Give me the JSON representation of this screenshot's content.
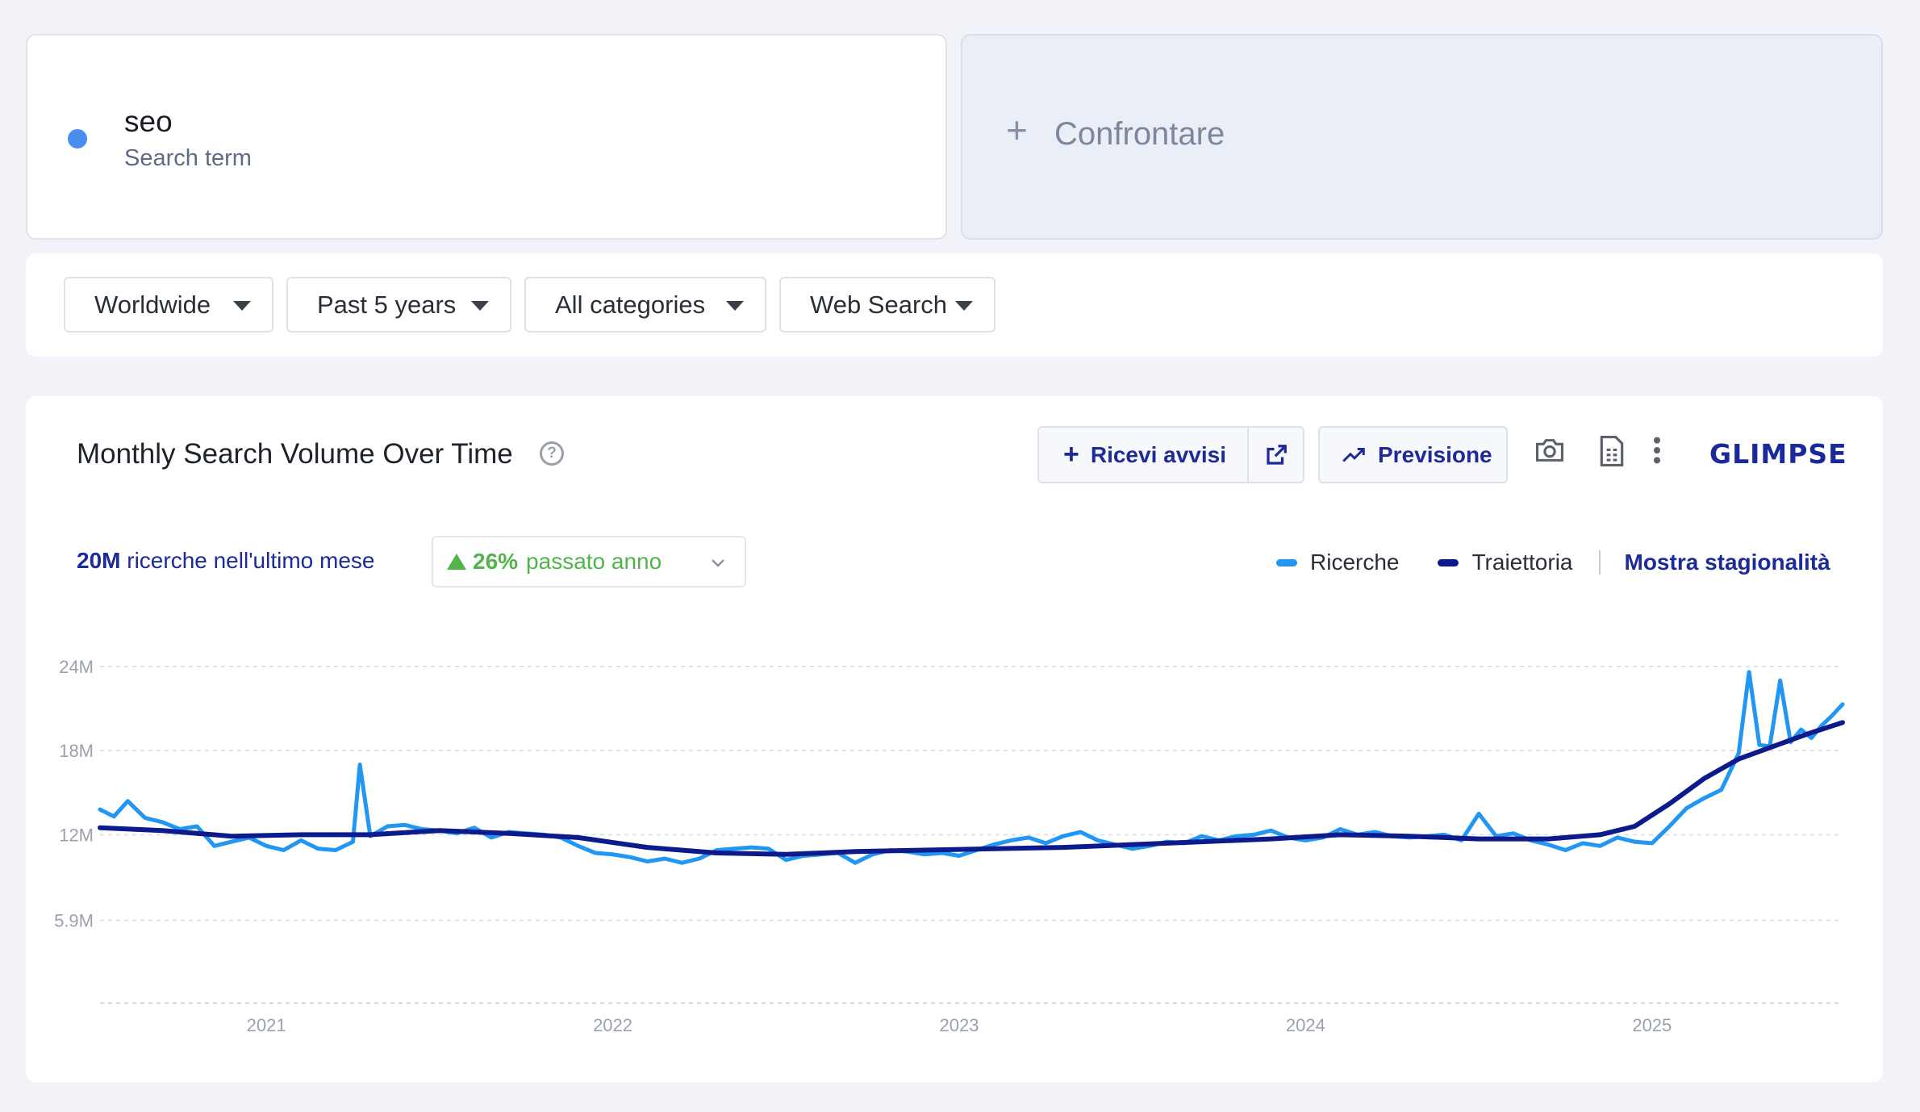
{
  "search_term": {
    "name": "seo",
    "type_label": "Search term",
    "color": "#4a8df0"
  },
  "compare": {
    "label": "Confrontare"
  },
  "filters": [
    {
      "label": "Worldwide"
    },
    {
      "label": "Past 5 years"
    },
    {
      "label": "All categories"
    },
    {
      "label": "Web Search"
    }
  ],
  "chart_card": {
    "title": "Monthly Search Volume Over Time",
    "alerts_label": "Ricevi avvisi",
    "forecast_label": "Previsione",
    "brand": "GLIMPSE",
    "volume_value": "20M",
    "volume_text": " ricerche nell'ultimo mese",
    "change_value": "26%",
    "change_text": "passato anno",
    "legend": {
      "searches": "Ricerche",
      "trajectory": "Traiettoria",
      "seasonality_link": "Mostra stagionalità"
    },
    "colors": {
      "searches": "#2196f3",
      "trajectory": "#0d1a8c",
      "accent": "#1d2a9a",
      "positive": "#53b34b"
    }
  },
  "chart_data": {
    "type": "line",
    "title": "Monthly Search Volume Over Time",
    "xlabel": "",
    "ylabel": "",
    "x_ticks": [
      "2021",
      "2022",
      "2023",
      "2024",
      "2025"
    ],
    "y_ticks": [
      "5.9M",
      "12M",
      "18M",
      "24M"
    ],
    "y_tick_values": [
      5.9,
      12,
      18,
      24
    ],
    "ylim": [
      0,
      25
    ],
    "xlim": [
      2020.52,
      2025.55
    ],
    "grid": true,
    "legend_position": "top-right",
    "series": [
      {
        "name": "Ricerche",
        "x": [
          2020.52,
          2020.56,
          2020.6,
          2020.65,
          2020.7,
          2020.75,
          2020.8,
          2020.85,
          2020.9,
          2020.95,
          2021.0,
          2021.05,
          2021.1,
          2021.15,
          2021.2,
          2021.25,
          2021.27,
          2021.3,
          2021.35,
          2021.4,
          2021.45,
          2021.5,
          2021.55,
          2021.6,
          2021.65,
          2021.7,
          2021.75,
          2021.8,
          2021.85,
          2021.9,
          2021.95,
          2022.0,
          2022.05,
          2022.1,
          2022.15,
          2022.2,
          2022.25,
          2022.3,
          2022.35,
          2022.4,
          2022.45,
          2022.5,
          2022.55,
          2022.6,
          2022.65,
          2022.7,
          2022.75,
          2022.8,
          2022.85,
          2022.9,
          2022.95,
          2023.0,
          2023.05,
          2023.1,
          2023.15,
          2023.2,
          2023.25,
          2023.3,
          2023.35,
          2023.4,
          2023.45,
          2023.5,
          2023.55,
          2023.6,
          2023.65,
          2023.7,
          2023.75,
          2023.8,
          2023.85,
          2023.9,
          2023.95,
          2024.0,
          2024.05,
          2024.1,
          2024.15,
          2024.2,
          2024.25,
          2024.3,
          2024.35,
          2024.4,
          2024.45,
          2024.5,
          2024.55,
          2024.6,
          2024.65,
          2024.7,
          2024.75,
          2024.8,
          2024.85,
          2024.9,
          2024.95,
          2025.0,
          2025.05,
          2025.1,
          2025.15,
          2025.2,
          2025.25,
          2025.28,
          2025.31,
          2025.34,
          2025.37,
          2025.4,
          2025.43,
          2025.46,
          2025.49,
          2025.52,
          2025.55
        ],
        "values": [
          13.8,
          13.3,
          14.4,
          13.2,
          12.9,
          12.4,
          12.6,
          11.2,
          11.5,
          11.8,
          11.2,
          10.9,
          11.6,
          11.0,
          10.9,
          11.5,
          17.0,
          11.9,
          12.6,
          12.7,
          12.4,
          12.3,
          12.1,
          12.5,
          11.8,
          12.2,
          12.1,
          12.0,
          11.8,
          11.2,
          10.7,
          10.6,
          10.4,
          10.1,
          10.3,
          10.0,
          10.3,
          10.9,
          11.0,
          11.1,
          11.0,
          10.2,
          10.5,
          10.6,
          10.7,
          10.0,
          10.6,
          10.9,
          10.8,
          10.6,
          10.7,
          10.5,
          10.9,
          11.3,
          11.6,
          11.8,
          11.4,
          11.9,
          12.2,
          11.6,
          11.3,
          11.0,
          11.2,
          11.5,
          11.4,
          11.9,
          11.6,
          11.9,
          12.0,
          12.3,
          11.8,
          11.6,
          11.8,
          12.4,
          12.0,
          12.2,
          11.9,
          11.8,
          11.9,
          12.0,
          11.6,
          13.5,
          11.9,
          12.1,
          11.6,
          11.3,
          10.9,
          11.4,
          11.2,
          11.8,
          11.5,
          11.4,
          12.6,
          13.9,
          14.6,
          15.2,
          17.8,
          23.6,
          18.4,
          18.3,
          23.0,
          18.6,
          19.5,
          18.9,
          19.8,
          20.5,
          21.3
        ]
      },
      {
        "name": "Traiettoria",
        "x": [
          2020.52,
          2020.7,
          2020.9,
          2021.1,
          2021.3,
          2021.5,
          2021.7,
          2021.9,
          2022.1,
          2022.3,
          2022.5,
          2022.7,
          2022.9,
          2023.1,
          2023.3,
          2023.5,
          2023.7,
          2023.9,
          2024.1,
          2024.3,
          2024.5,
          2024.7,
          2024.85,
          2024.95,
          2025.05,
          2025.15,
          2025.25,
          2025.35,
          2025.45,
          2025.55
        ],
        "values": [
          12.5,
          12.3,
          11.9,
          12.0,
          12.0,
          12.3,
          12.1,
          11.8,
          11.1,
          10.7,
          10.6,
          10.8,
          10.9,
          11.0,
          11.1,
          11.3,
          11.5,
          11.7,
          12.0,
          11.9,
          11.7,
          11.7,
          12.0,
          12.6,
          14.2,
          16.0,
          17.4,
          18.3,
          19.2,
          20.0
        ]
      }
    ]
  }
}
